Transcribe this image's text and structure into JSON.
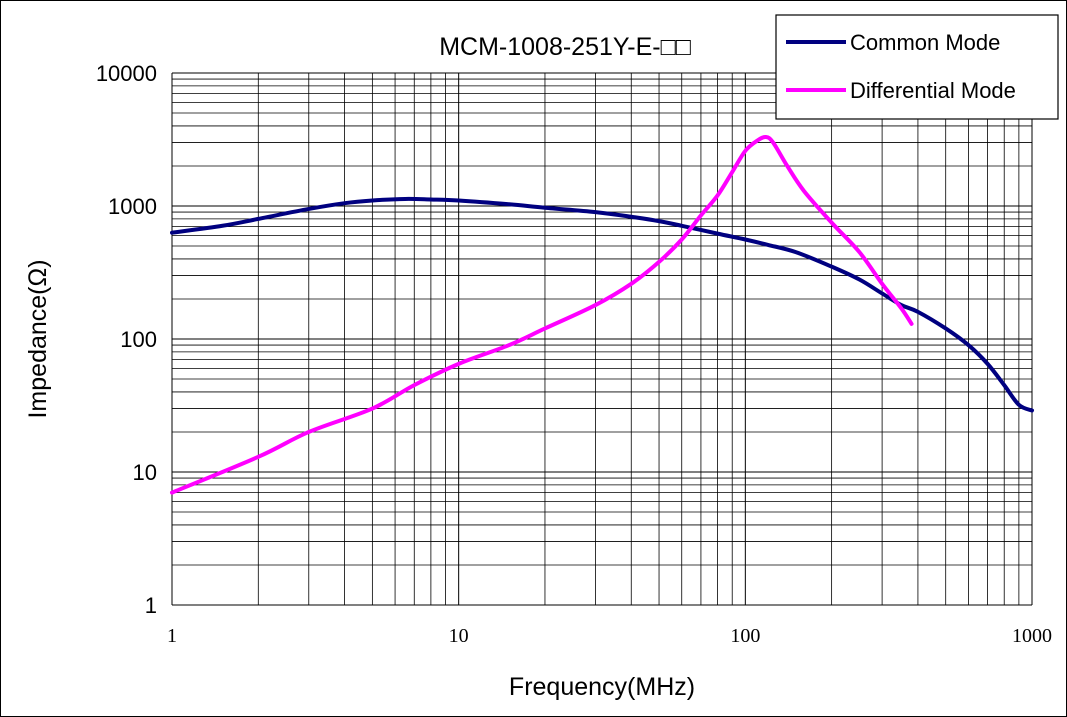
{
  "chart_data": {
    "type": "line",
    "title": "MCM-1008-251Y-E-□□",
    "xlabel": "Frequency(MHz)",
    "ylabel": "Impedance(Ω)",
    "xscale": "log",
    "yscale": "log",
    "xlim": [
      1,
      1000
    ],
    "ylim": [
      1,
      10000
    ],
    "x_tick_labels": [
      "1",
      "10",
      "100",
      "1000"
    ],
    "y_tick_labels": [
      "1",
      "10",
      "100",
      "1000",
      "10000"
    ],
    "grid": true,
    "legend_position": "top-right",
    "series": [
      {
        "name": "Common Mode",
        "color": "#000080",
        "points": [
          [
            1,
            630
          ],
          [
            1.5,
            710
          ],
          [
            2,
            800
          ],
          [
            3,
            950
          ],
          [
            4,
            1050
          ],
          [
            5,
            1100
          ],
          [
            6.5,
            1130
          ],
          [
            8,
            1120
          ],
          [
            10,
            1100
          ],
          [
            15,
            1030
          ],
          [
            20,
            970
          ],
          [
            30,
            900
          ],
          [
            40,
            830
          ],
          [
            50,
            770
          ],
          [
            60,
            710
          ],
          [
            80,
            620
          ],
          [
            100,
            560
          ],
          [
            120,
            510
          ],
          [
            150,
            450
          ],
          [
            200,
            350
          ],
          [
            250,
            280
          ],
          [
            300,
            220
          ],
          [
            350,
            180
          ],
          [
            400,
            160
          ],
          [
            500,
            120
          ],
          [
            600,
            90
          ],
          [
            700,
            65
          ],
          [
            800,
            45
          ],
          [
            900,
            32
          ],
          [
            1000,
            29
          ]
        ]
      },
      {
        "name": "Differential Mode",
        "color": "#FF00FF",
        "points": [
          [
            1,
            7
          ],
          [
            2,
            13
          ],
          [
            3,
            20
          ],
          [
            5,
            30
          ],
          [
            7,
            45
          ],
          [
            10,
            65
          ],
          [
            15,
            90
          ],
          [
            20,
            120
          ],
          [
            30,
            180
          ],
          [
            40,
            260
          ],
          [
            50,
            380
          ],
          [
            60,
            560
          ],
          [
            70,
            850
          ],
          [
            80,
            1200
          ],
          [
            90,
            1800
          ],
          [
            100,
            2600
          ],
          [
            110,
            3100
          ],
          [
            118,
            3300
          ],
          [
            125,
            3000
          ],
          [
            140,
            2000
          ],
          [
            160,
            1300
          ],
          [
            200,
            750
          ],
          [
            250,
            450
          ],
          [
            300,
            260
          ],
          [
            350,
            170
          ],
          [
            380,
            130
          ]
        ]
      }
    ]
  }
}
